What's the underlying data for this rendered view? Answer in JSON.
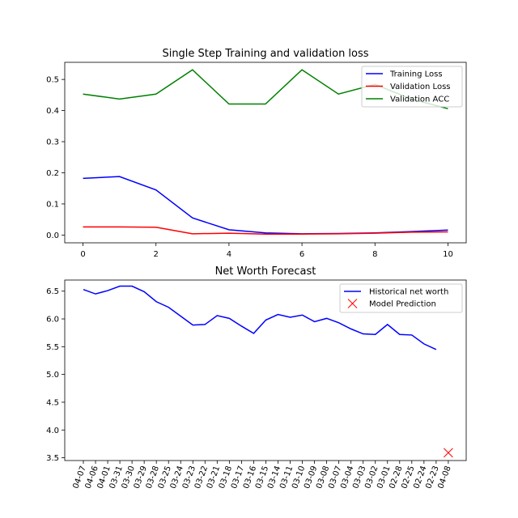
{
  "chart_data": [
    {
      "type": "line",
      "title": "Single Step Training and validation loss",
      "xlabel": "",
      "ylabel": "",
      "xlim": [
        -0.5,
        10.5
      ],
      "ylim": [
        -0.025,
        0.555
      ],
      "xticks": [
        0,
        2,
        4,
        6,
        8,
        10
      ],
      "yticks": [
        0.0,
        0.1,
        0.2,
        0.3,
        0.4,
        0.5
      ],
      "grid": false,
      "legend": "top-right",
      "x": [
        0,
        1,
        2,
        3,
        4,
        5,
        6,
        7,
        8,
        9,
        10
      ],
      "series": [
        {
          "name": "Training Loss",
          "color": "#0000ff",
          "values": [
            0.182,
            0.188,
            0.145,
            0.055,
            0.017,
            0.007,
            0.004,
            0.005,
            0.007,
            0.011,
            0.016
          ]
        },
        {
          "name": "Validation Loss",
          "color": "#ff0000",
          "values": [
            0.026,
            0.026,
            0.025,
            0.004,
            0.006,
            0.003,
            0.003,
            0.004,
            0.006,
            0.009,
            0.01
          ]
        },
        {
          "name": "Validation ACC",
          "color": "#008000",
          "values": [
            0.453,
            0.437,
            0.453,
            0.531,
            0.421,
            0.421,
            0.531,
            0.453,
            0.484,
            0.437,
            0.406
          ]
        }
      ]
    },
    {
      "type": "line",
      "title": "Net Worth Forecast",
      "xlabel": "",
      "ylabel": "",
      "ylim": [
        3.45,
        6.7
      ],
      "yticks": [
        3.5,
        4.0,
        4.5,
        5.0,
        5.5,
        6.0,
        6.5
      ],
      "grid": false,
      "legend": "top-right",
      "categories": [
        "04-07",
        "04-06",
        "04-01",
        "03-31",
        "03-30",
        "03-29",
        "03-28",
        "03-25",
        "03-24",
        "03-23",
        "03-22",
        "03-21",
        "03-18",
        "03-17",
        "03-16",
        "03-15",
        "03-14",
        "03-11",
        "03-10",
        "03-09",
        "03-08",
        "03-07",
        "03-04",
        "03-03",
        "03-02",
        "03-01",
        "02-28",
        "02-25",
        "02-24",
        "02-23",
        "04-08"
      ],
      "series": [
        {
          "name": "Historical net worth",
          "color": "#0000ff",
          "marker": "line",
          "values": [
            6.53,
            6.45,
            6.51,
            6.59,
            6.59,
            6.49,
            6.31,
            6.21,
            6.05,
            5.89,
            5.9,
            6.06,
            6.01,
            5.87,
            5.74,
            5.98,
            6.08,
            6.03,
            6.07,
            5.95,
            6.01,
            5.93,
            5.82,
            5.73,
            5.72,
            5.9,
            5.72,
            5.71,
            5.55,
            5.45,
            null
          ]
        },
        {
          "name": "Model Prediction",
          "color": "#ff0000",
          "marker": "x",
          "values": [
            null,
            null,
            null,
            null,
            null,
            null,
            null,
            null,
            null,
            null,
            null,
            null,
            null,
            null,
            null,
            null,
            null,
            null,
            null,
            null,
            null,
            null,
            null,
            null,
            null,
            null,
            null,
            null,
            null,
            null,
            3.59
          ]
        }
      ]
    }
  ]
}
